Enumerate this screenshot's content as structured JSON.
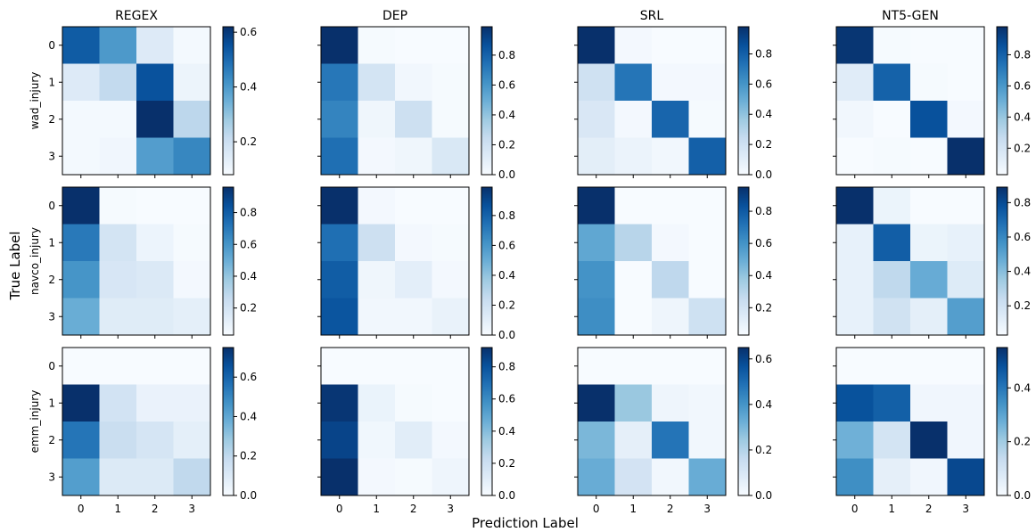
{
  "figure": {
    "xlabel": "Prediction Label",
    "ylabel": "True Label",
    "colormap": "Blues",
    "tick_labels": [
      "0",
      "1",
      "2",
      "3"
    ]
  },
  "chart_data": [
    {
      "type": "heatmap",
      "row_label": "wad_injury",
      "title": "REGEX",
      "colorbar_ticks": [
        "0.2",
        "0.4",
        "0.6"
      ],
      "vmin": 0.08,
      "vmax": 0.62,
      "matrix": [
        [
          0.53,
          0.4,
          0.15,
          0.09
        ],
        [
          0.15,
          0.22,
          0.55,
          0.11
        ],
        [
          0.09,
          0.09,
          0.62,
          0.23
        ],
        [
          0.09,
          0.1,
          0.39,
          0.44
        ]
      ]
    },
    {
      "type": "heatmap",
      "row_label": "",
      "title": "DEP",
      "colorbar_ticks": [
        "0.0",
        "0.2",
        "0.4",
        "0.6",
        "0.8"
      ],
      "vmin": 0.0,
      "vmax": 0.99,
      "matrix": [
        [
          0.99,
          0.01,
          0.0,
          0.0
        ],
        [
          0.72,
          0.18,
          0.03,
          0.01
        ],
        [
          0.67,
          0.04,
          0.21,
          0.01
        ],
        [
          0.75,
          0.02,
          0.04,
          0.15
        ]
      ]
    },
    {
      "type": "heatmap",
      "row_label": "",
      "title": "SRL",
      "colorbar_ticks": [
        "0.0",
        "0.2",
        "0.4",
        "0.6",
        "0.8"
      ],
      "vmin": 0.0,
      "vmax": 0.98,
      "matrix": [
        [
          0.98,
          0.02,
          0.0,
          0.0
        ],
        [
          0.2,
          0.72,
          0.02,
          0.02
        ],
        [
          0.15,
          0.02,
          0.78,
          0.01
        ],
        [
          0.1,
          0.06,
          0.03,
          0.8
        ]
      ]
    },
    {
      "type": "heatmap",
      "row_label": "",
      "title": "NT5-GEN",
      "colorbar_ticks": [
        "0.2",
        "0.4",
        "0.6",
        "0.8"
      ],
      "vmin": 0.03,
      "vmax": 0.98,
      "matrix": [
        [
          0.96,
          0.04,
          0.02,
          0.02
        ],
        [
          0.14,
          0.8,
          0.04,
          0.03
        ],
        [
          0.06,
          0.03,
          0.86,
          0.05
        ],
        [
          0.03,
          0.04,
          0.03,
          0.98
        ]
      ]
    },
    {
      "type": "heatmap",
      "row_label": "navco_injury",
      "title": "",
      "colorbar_ticks": [
        "0.2",
        "0.4",
        "0.6",
        "0.8"
      ],
      "vmin": 0.03,
      "vmax": 0.96,
      "matrix": [
        [
          0.96,
          0.04,
          0.03,
          0.03
        ],
        [
          0.7,
          0.2,
          0.08,
          0.04
        ],
        [
          0.6,
          0.18,
          0.16,
          0.05
        ],
        [
          0.5,
          0.14,
          0.14,
          0.12
        ]
      ]
    },
    {
      "type": "heatmap",
      "row_label": "",
      "title": "",
      "colorbar_ticks": [
        "0.0",
        "0.2",
        "0.4",
        "0.6",
        "0.8"
      ],
      "vmin": 0.0,
      "vmax": 0.99,
      "matrix": [
        [
          0.99,
          0.02,
          0.0,
          0.0
        ],
        [
          0.75,
          0.21,
          0.02,
          0.01
        ],
        [
          0.82,
          0.04,
          0.1,
          0.02
        ],
        [
          0.85,
          0.03,
          0.03,
          0.07
        ]
      ]
    },
    {
      "type": "heatmap",
      "row_label": "",
      "title": "",
      "colorbar_ticks": [
        "0.2",
        "0.4",
        "0.6",
        "0.8"
      ],
      "vmin": 0.03,
      "vmax": 0.95,
      "matrix": [
        [
          0.95,
          0.03,
          0.03,
          0.03
        ],
        [
          0.52,
          0.3,
          0.05,
          0.03
        ],
        [
          0.6,
          0.03,
          0.28,
          0.03
        ],
        [
          0.62,
          0.03,
          0.07,
          0.22
        ]
      ]
    },
    {
      "type": "heatmap",
      "row_label": "",
      "title": "",
      "colorbar_ticks": [
        "0.2",
        "0.4",
        "0.6",
        "0.8"
      ],
      "vmin": 0.03,
      "vmax": 0.89,
      "matrix": [
        [
          0.89,
          0.08,
          0.03,
          0.03
        ],
        [
          0.1,
          0.74,
          0.08,
          0.1
        ],
        [
          0.1,
          0.26,
          0.47,
          0.14
        ],
        [
          0.1,
          0.2,
          0.11,
          0.52
        ]
      ]
    },
    {
      "type": "heatmap",
      "row_label": "emm_injury",
      "title": "",
      "colorbar_ticks": [
        "0.0",
        "0.2",
        "0.4",
        "0.6"
      ],
      "vmin": 0.0,
      "vmax": 0.75,
      "matrix": [
        [
          0.0,
          0.0,
          0.0,
          0.0
        ],
        [
          0.75,
          0.14,
          0.05,
          0.05
        ],
        [
          0.55,
          0.17,
          0.13,
          0.07
        ],
        [
          0.43,
          0.1,
          0.1,
          0.2
        ]
      ]
    },
    {
      "type": "heatmap",
      "row_label": "",
      "title": "",
      "colorbar_ticks": [
        "0.0",
        "0.2",
        "0.4",
        "0.6",
        "0.8"
      ],
      "vmin": 0.0,
      "vmax": 0.92,
      "matrix": [
        [
          0.0,
          0.0,
          0.0,
          0.0
        ],
        [
          0.9,
          0.06,
          0.01,
          0.0
        ],
        [
          0.85,
          0.03,
          0.1,
          0.02
        ],
        [
          0.92,
          0.02,
          0.01,
          0.04
        ]
      ]
    },
    {
      "type": "heatmap",
      "row_label": "",
      "title": "",
      "colorbar_ticks": [
        "0.0",
        "0.2",
        "0.4",
        "0.6"
      ],
      "vmin": 0.0,
      "vmax": 0.65,
      "matrix": [
        [
          0.0,
          0.0,
          0.0,
          0.0
        ],
        [
          0.65,
          0.25,
          0.03,
          0.02
        ],
        [
          0.3,
          0.06,
          0.48,
          0.02
        ],
        [
          0.33,
          0.12,
          0.02,
          0.33
        ]
      ]
    },
    {
      "type": "heatmap",
      "row_label": "",
      "title": "",
      "colorbar_ticks": [
        "0.0",
        "0.2",
        "0.4"
      ],
      "vmin": 0.0,
      "vmax": 0.55,
      "matrix": [
        [
          0.0,
          0.0,
          0.0,
          0.0
        ],
        [
          0.48,
          0.45,
          0.02,
          0.02
        ],
        [
          0.27,
          0.1,
          0.55,
          0.02
        ],
        [
          0.35,
          0.05,
          0.02,
          0.5
        ]
      ]
    }
  ]
}
